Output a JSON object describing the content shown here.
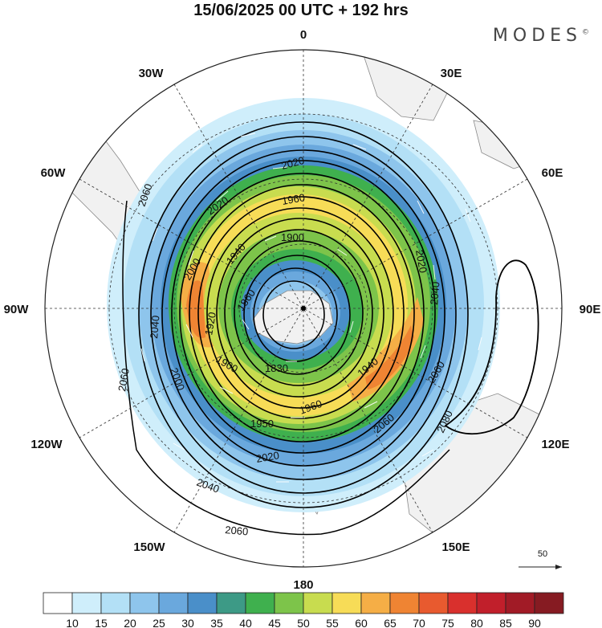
{
  "header": {
    "title": "15/06/2025  00 UTC  + 192 hrs",
    "brand": "MODES",
    "brand_mark": "©"
  },
  "map": {
    "projection": "south polar stereographic",
    "longitude_labels": [
      {
        "key": "lon-0",
        "text": "0"
      },
      {
        "key": "lon-30e",
        "text": "30E"
      },
      {
        "key": "lon-60e",
        "text": "60E"
      },
      {
        "key": "lon-90e",
        "text": "90E"
      },
      {
        "key": "lon-120e",
        "text": "120E"
      },
      {
        "key": "lon-150e",
        "text": "150E"
      },
      {
        "key": "lon-180",
        "text": "180"
      },
      {
        "key": "lon-150w",
        "text": "150W"
      },
      {
        "key": "lon-120w",
        "text": "120W"
      },
      {
        "key": "lon-90w",
        "text": "90W"
      },
      {
        "key": "lon-60w",
        "text": "60W"
      },
      {
        "key": "lon-30w",
        "text": "30W"
      }
    ],
    "contour_labels": [
      "2020",
      "1960",
      "1900",
      "2060",
      "2020",
      "1940",
      "2000",
      "1860",
      "1920",
      "2040",
      "2020",
      "2040",
      "1830",
      "1940",
      "1900",
      "2060",
      "2060",
      "2000",
      "1960",
      "1950",
      "2080",
      "2060",
      "2020",
      "2040",
      "2060"
    ],
    "wind_reference": "50"
  },
  "colorbar": {
    "labels": [
      "10",
      "15",
      "20",
      "25",
      "30",
      "35",
      "40",
      "45",
      "50",
      "55",
      "60",
      "65",
      "70",
      "75",
      "80",
      "85",
      "90"
    ],
    "colors": [
      "#ffffff",
      "#cfeefb",
      "#b3e0f6",
      "#8ec5ec",
      "#6aa8dd",
      "#4a8fc9",
      "#3d9a86",
      "#3fb04e",
      "#7dc44a",
      "#c8dc4f",
      "#f7dc57",
      "#f5ae46",
      "#ef8433",
      "#e85a2f",
      "#d9302d",
      "#c11f2b",
      "#a11b26",
      "#861b22"
    ]
  }
}
